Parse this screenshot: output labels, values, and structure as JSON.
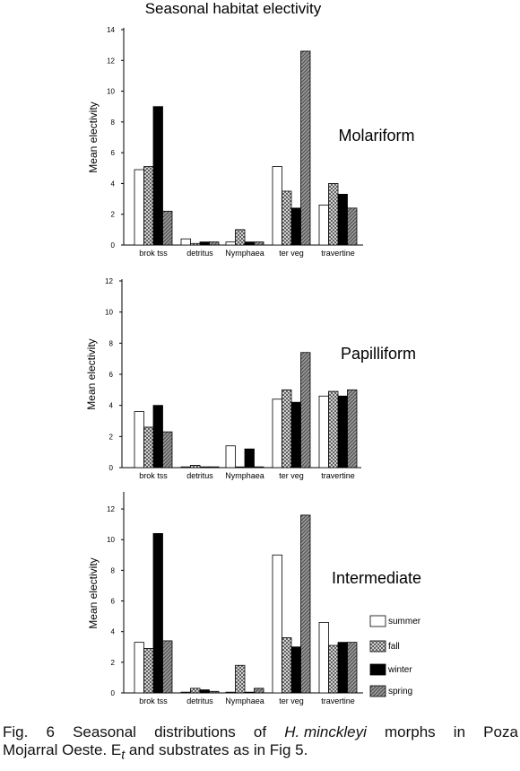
{
  "title": "Seasonal habitat electivity",
  "caption": {
    "w1": "Fig.",
    "w2": "6",
    "w3": "Seasonal",
    "w4": "distributions",
    "w5": "of",
    "species": "H. minckleyi",
    "w6": "morphs",
    "w7": "in",
    "w8": "Poza",
    "l2a": "Mojarral Oeste. E",
    "sub": "t",
    "l2b": " and substrates as in Fig 5."
  },
  "colors": {
    "summer": "#ffffff",
    "fall": "#b8b8b8",
    "winter": "#000000",
    "spring": "#909090"
  },
  "chart_data": [
    {
      "type": "bar",
      "title": "Molariform",
      "ylabel": "Mean electivity",
      "xlabel": "",
      "ylim": [
        0,
        14
      ],
      "yticks": [
        "0",
        "2",
        "4",
        "6",
        "8",
        "10",
        "12",
        "14"
      ],
      "categories": [
        "brok tss",
        "detritus",
        "Nymphaea",
        "ter veg",
        "travertine"
      ],
      "series": [
        {
          "name": "summer",
          "values": [
            4.9,
            0.4,
            0.2,
            5.1,
            2.6
          ]
        },
        {
          "name": "fall",
          "values": [
            5.1,
            0.1,
            1.0,
            3.5,
            4.0
          ]
        },
        {
          "name": "winter",
          "values": [
            9.0,
            0.2,
            0.2,
            2.4,
            3.3
          ]
        },
        {
          "name": "spring",
          "values": [
            2.2,
            0.2,
            0.2,
            12.6,
            2.4
          ]
        }
      ],
      "legend": "none"
    },
    {
      "type": "bar",
      "title": "Papilliform",
      "ylabel": "Mean electivity",
      "xlabel": "",
      "ylim": [
        0,
        12
      ],
      "yticks": [
        "0",
        "2",
        "4",
        "6",
        "8",
        "10",
        "12"
      ],
      "categories": [
        "brok tss",
        "detritus",
        "Nymphaea",
        "ter veg",
        "travertine"
      ],
      "series": [
        {
          "name": "summer",
          "values": [
            3.6,
            0.05,
            1.4,
            4.4,
            4.6
          ]
        },
        {
          "name": "fall",
          "values": [
            2.6,
            0.15,
            0.0,
            5.0,
            4.9
          ]
        },
        {
          "name": "winter",
          "values": [
            4.0,
            0.05,
            1.2,
            4.2,
            4.6
          ]
        },
        {
          "name": "spring",
          "values": [
            2.3,
            0.05,
            0.05,
            7.4,
            5.0
          ]
        }
      ],
      "legend": "none"
    },
    {
      "type": "bar",
      "title": "Intermediate",
      "ylabel": "Mean electivity",
      "xlabel": "",
      "ylim": [
        0,
        13
      ],
      "yticks": [
        "0",
        "2",
        "4",
        "6",
        "8",
        "10",
        "12"
      ],
      "categories": [
        "brok tss",
        "detritus",
        "Nymphaea",
        "ter veg",
        "travertine"
      ],
      "series": [
        {
          "name": "summer",
          "values": [
            3.3,
            0.05,
            0.05,
            9.0,
            4.6
          ]
        },
        {
          "name": "fall",
          "values": [
            2.9,
            0.3,
            1.8,
            3.6,
            3.1
          ]
        },
        {
          "name": "winter",
          "values": [
            10.4,
            0.2,
            0.05,
            3.0,
            3.3
          ]
        },
        {
          "name": "spring",
          "values": [
            3.4,
            0.1,
            0.3,
            11.6,
            3.3
          ]
        }
      ],
      "legend": "right"
    }
  ]
}
